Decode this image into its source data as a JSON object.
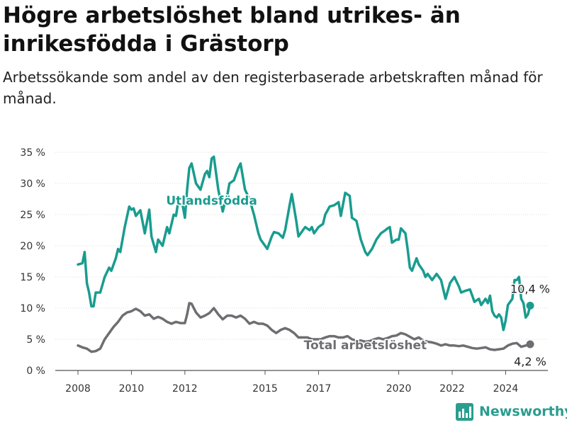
{
  "header": {
    "title": "Högre arbetslöshet bland utrikes- än inrikesfödda i Grästorp",
    "subtitle": "Arbetssökande som andel av den registerbaserade arbetskraften månad för månad."
  },
  "brand": {
    "name": "Newsworthy",
    "logo_icon": "bar-chart-logo-icon",
    "color": "#2a9d8f"
  },
  "chart_data": {
    "type": "line",
    "title": "Högre arbetslöshet bland utrikes- än inrikesfödda i Grästorp",
    "subtitle": "Arbetssökande som andel av den registerbaserade arbetskraften månad för månad.",
    "xlabel": "",
    "ylabel": "",
    "x_ticks": [
      "2008",
      "2010",
      "2012",
      "2015",
      "2017",
      "2020",
      "2022",
      "2024"
    ],
    "y_ticks": [
      "0 %",
      "5 %",
      "10 %",
      "15 %",
      "20 %",
      "25 %",
      "30 %",
      "35 %"
    ],
    "ylim": [
      0,
      35
    ],
    "xlim": [
      "2008-01",
      "2024-12"
    ],
    "grid": "horizontal",
    "series": [
      {
        "name": "Utlandsfödda",
        "color": "#199c8f",
        "end_label": "10,4 %",
        "points": [
          [
            "2008-01",
            17.0
          ],
          [
            "2008-03",
            17.2
          ],
          [
            "2008-04",
            19.0
          ],
          [
            "2008-05",
            14.0
          ],
          [
            "2008-06",
            12.5
          ],
          [
            "2008-07",
            10.3
          ],
          [
            "2008-08",
            10.3
          ],
          [
            "2008-09",
            12.5
          ],
          [
            "2008-11",
            12.5
          ],
          [
            "2009-01",
            15.0
          ],
          [
            "2009-03",
            16.5
          ],
          [
            "2009-04",
            16.0
          ],
          [
            "2009-06",
            18.0
          ],
          [
            "2009-07",
            19.5
          ],
          [
            "2009-08",
            19.0
          ],
          [
            "2009-10",
            23.0
          ],
          [
            "2009-12",
            26.3
          ],
          [
            "2010-01",
            25.8
          ],
          [
            "2010-02",
            26.0
          ],
          [
            "2010-03",
            24.8
          ],
          [
            "2010-05",
            25.7
          ],
          [
            "2010-07",
            22.0
          ],
          [
            "2010-09",
            25.8
          ],
          [
            "2010-10",
            21.5
          ],
          [
            "2010-12",
            19.0
          ],
          [
            "2011-01",
            21.0
          ],
          [
            "2011-03",
            20.0
          ],
          [
            "2011-05",
            23.0
          ],
          [
            "2011-06",
            22.0
          ],
          [
            "2011-08",
            25.0
          ],
          [
            "2011-09",
            24.8
          ],
          [
            "2011-10",
            27.0
          ],
          [
            "2011-12",
            26.5
          ],
          [
            "2012-01",
            24.5
          ],
          [
            "2012-02",
            29.0
          ],
          [
            "2012-03",
            32.5
          ],
          [
            "2012-04",
            33.2
          ],
          [
            "2012-06",
            30.0
          ],
          [
            "2012-08",
            29.0
          ],
          [
            "2012-10",
            31.5
          ],
          [
            "2012-11",
            32.0
          ],
          [
            "2012-12",
            31.0
          ],
          [
            "2013-01",
            34.0
          ],
          [
            "2013-02",
            34.3
          ],
          [
            "2013-04",
            29.0
          ],
          [
            "2013-06",
            25.5
          ],
          [
            "2013-07",
            27.0
          ],
          [
            "2013-08",
            28.0
          ],
          [
            "2013-09",
            30.0
          ],
          [
            "2013-11",
            30.5
          ],
          [
            "2014-01",
            32.5
          ],
          [
            "2014-02",
            33.2
          ],
          [
            "2014-04",
            29.0
          ],
          [
            "2014-06",
            27.5
          ],
          [
            "2014-08",
            25.0
          ],
          [
            "2014-10",
            22.0
          ],
          [
            "2014-11",
            21.0
          ],
          [
            "2015-01",
            20.0
          ],
          [
            "2015-02",
            19.5
          ],
          [
            "2015-04",
            21.5
          ],
          [
            "2015-05",
            22.2
          ],
          [
            "2015-07",
            22.0
          ],
          [
            "2015-09",
            21.3
          ],
          [
            "2015-10",
            22.5
          ],
          [
            "2015-12",
            26.5
          ],
          [
            "2016-01",
            28.3
          ],
          [
            "2016-03",
            24.0
          ],
          [
            "2016-04",
            21.5
          ],
          [
            "2016-06",
            22.5
          ],
          [
            "2016-07",
            23.0
          ],
          [
            "2016-09",
            22.5
          ],
          [
            "2016-10",
            23.0
          ],
          [
            "2016-11",
            22.0
          ],
          [
            "2017-01",
            23.0
          ],
          [
            "2017-03",
            23.5
          ],
          [
            "2017-04",
            25.0
          ],
          [
            "2017-06",
            26.3
          ],
          [
            "2017-08",
            26.5
          ],
          [
            "2017-10",
            27.0
          ],
          [
            "2017-11",
            24.8
          ],
          [
            "2018-01",
            28.5
          ],
          [
            "2018-03",
            28.0
          ],
          [
            "2018-04",
            24.5
          ],
          [
            "2018-06",
            24.0
          ],
          [
            "2018-08",
            21.0
          ],
          [
            "2018-10",
            19.0
          ],
          [
            "2018-11",
            18.5
          ],
          [
            "2019-01",
            19.5
          ],
          [
            "2019-03",
            21.0
          ],
          [
            "2019-05",
            22.0
          ],
          [
            "2019-07",
            22.5
          ],
          [
            "2019-08",
            22.8
          ],
          [
            "2019-09",
            23.0
          ],
          [
            "2019-10",
            20.5
          ],
          [
            "2019-12",
            21.0
          ],
          [
            "2020-01",
            21.0
          ],
          [
            "2020-02",
            22.8
          ],
          [
            "2020-04",
            22.0
          ],
          [
            "2020-05",
            19.5
          ],
          [
            "2020-06",
            16.5
          ],
          [
            "2020-07",
            16.0
          ],
          [
            "2020-09",
            18.0
          ],
          [
            "2020-10",
            17.0
          ],
          [
            "2020-12",
            16.0
          ],
          [
            "2021-01",
            15.0
          ],
          [
            "2021-02",
            15.5
          ],
          [
            "2021-04",
            14.5
          ],
          [
            "2021-06",
            15.5
          ],
          [
            "2021-08",
            14.5
          ],
          [
            "2021-10",
            11.5
          ],
          [
            "2021-12",
            14.0
          ],
          [
            "2022-02",
            15.0
          ],
          [
            "2022-04",
            13.5
          ],
          [
            "2022-05",
            12.5
          ],
          [
            "2022-07",
            12.8
          ],
          [
            "2022-09",
            13.0
          ],
          [
            "2022-10",
            12.0
          ],
          [
            "2022-11",
            11.0
          ],
          [
            "2023-01",
            11.5
          ],
          [
            "2023-02",
            10.5
          ],
          [
            "2023-04",
            11.5
          ],
          [
            "2023-05",
            10.8
          ],
          [
            "2023-06",
            12.0
          ],
          [
            "2023-07",
            9.5
          ],
          [
            "2023-08",
            8.8
          ],
          [
            "2023-09",
            8.5
          ],
          [
            "2023-10",
            9.0
          ],
          [
            "2023-11",
            8.5
          ],
          [
            "2023-12",
            6.5
          ],
          [
            "2024-01",
            8.0
          ],
          [
            "2024-02",
            10.5
          ],
          [
            "2024-03",
            11.0
          ],
          [
            "2024-04",
            11.5
          ],
          [
            "2024-05",
            14.5
          ],
          [
            "2024-06",
            14.5
          ],
          [
            "2024-07",
            15.0
          ],
          [
            "2024-08",
            11.5
          ],
          [
            "2024-09",
            10.8
          ],
          [
            "2024-10",
            8.5
          ],
          [
            "2024-11",
            9.0
          ],
          [
            "2024-12",
            10.4
          ]
        ]
      },
      {
        "name": "Total arbetslöshet",
        "color": "#6e6e72",
        "end_label": "4,2 %",
        "points": [
          [
            "2008-01",
            4.0
          ],
          [
            "2008-03",
            3.7
          ],
          [
            "2008-05",
            3.5
          ],
          [
            "2008-07",
            3.0
          ],
          [
            "2008-09",
            3.1
          ],
          [
            "2008-11",
            3.5
          ],
          [
            "2009-01",
            5.0
          ],
          [
            "2009-03",
            6.0
          ],
          [
            "2009-05",
            7.0
          ],
          [
            "2009-07",
            7.8
          ],
          [
            "2009-09",
            8.8
          ],
          [
            "2009-11",
            9.3
          ],
          [
            "2010-01",
            9.5
          ],
          [
            "2010-03",
            9.9
          ],
          [
            "2010-05",
            9.5
          ],
          [
            "2010-07",
            8.8
          ],
          [
            "2010-09",
            9.0
          ],
          [
            "2010-11",
            8.3
          ],
          [
            "2011-01",
            8.6
          ],
          [
            "2011-03",
            8.3
          ],
          [
            "2011-05",
            7.8
          ],
          [
            "2011-07",
            7.5
          ],
          [
            "2011-09",
            7.8
          ],
          [
            "2011-11",
            7.6
          ],
          [
            "2012-01",
            7.6
          ],
          [
            "2012-02",
            9.0
          ],
          [
            "2012-03",
            10.8
          ],
          [
            "2012-04",
            10.7
          ],
          [
            "2012-06",
            9.3
          ],
          [
            "2012-08",
            8.5
          ],
          [
            "2012-10",
            8.8
          ],
          [
            "2012-12",
            9.2
          ],
          [
            "2013-02",
            10.0
          ],
          [
            "2013-04",
            9.0
          ],
          [
            "2013-06",
            8.2
          ],
          [
            "2013-08",
            8.8
          ],
          [
            "2013-10",
            8.8
          ],
          [
            "2013-12",
            8.5
          ],
          [
            "2014-02",
            8.8
          ],
          [
            "2014-04",
            8.3
          ],
          [
            "2014-06",
            7.5
          ],
          [
            "2014-08",
            7.8
          ],
          [
            "2014-10",
            7.5
          ],
          [
            "2014-12",
            7.5
          ],
          [
            "2015-02",
            7.2
          ],
          [
            "2015-04",
            6.5
          ],
          [
            "2015-06",
            6.0
          ],
          [
            "2015-08",
            6.5
          ],
          [
            "2015-10",
            6.8
          ],
          [
            "2015-12",
            6.5
          ],
          [
            "2016-02",
            6.0
          ],
          [
            "2016-04",
            5.3
          ],
          [
            "2016-06",
            5.3
          ],
          [
            "2016-08",
            5.3
          ],
          [
            "2016-10",
            5.0
          ],
          [
            "2016-12",
            5.0
          ],
          [
            "2017-02",
            5.0
          ],
          [
            "2017-04",
            5.3
          ],
          [
            "2017-06",
            5.5
          ],
          [
            "2017-08",
            5.5
          ],
          [
            "2017-10",
            5.3
          ],
          [
            "2017-12",
            5.3
          ],
          [
            "2018-02",
            5.5
          ],
          [
            "2018-04",
            5.0
          ],
          [
            "2018-06",
            4.8
          ],
          [
            "2018-08",
            4.8
          ],
          [
            "2018-10",
            4.6
          ],
          [
            "2018-12",
            4.7
          ],
          [
            "2019-02",
            5.0
          ],
          [
            "2019-04",
            5.2
          ],
          [
            "2019-06",
            5.0
          ],
          [
            "2019-08",
            5.2
          ],
          [
            "2019-10",
            5.5
          ],
          [
            "2019-12",
            5.6
          ],
          [
            "2020-02",
            6.0
          ],
          [
            "2020-04",
            5.8
          ],
          [
            "2020-06",
            5.4
          ],
          [
            "2020-08",
            5.0
          ],
          [
            "2020-10",
            5.3
          ],
          [
            "2020-12",
            4.8
          ],
          [
            "2021-02",
            4.6
          ],
          [
            "2021-04",
            4.5
          ],
          [
            "2021-06",
            4.3
          ],
          [
            "2021-08",
            4.0
          ],
          [
            "2021-10",
            4.2
          ],
          [
            "2021-12",
            4.0
          ],
          [
            "2022-02",
            4.0
          ],
          [
            "2022-04",
            3.9
          ],
          [
            "2022-06",
            4.0
          ],
          [
            "2022-08",
            3.8
          ],
          [
            "2022-10",
            3.6
          ],
          [
            "2022-12",
            3.5
          ],
          [
            "2023-02",
            3.6
          ],
          [
            "2023-04",
            3.7
          ],
          [
            "2023-06",
            3.4
          ],
          [
            "2023-08",
            3.3
          ],
          [
            "2023-10",
            3.4
          ],
          [
            "2023-12",
            3.5
          ],
          [
            "2024-02",
            4.0
          ],
          [
            "2024-04",
            4.3
          ],
          [
            "2024-06",
            4.4
          ],
          [
            "2024-08",
            3.8
          ],
          [
            "2024-10",
            4.0
          ],
          [
            "2024-12",
            4.2
          ]
        ]
      }
    ]
  }
}
